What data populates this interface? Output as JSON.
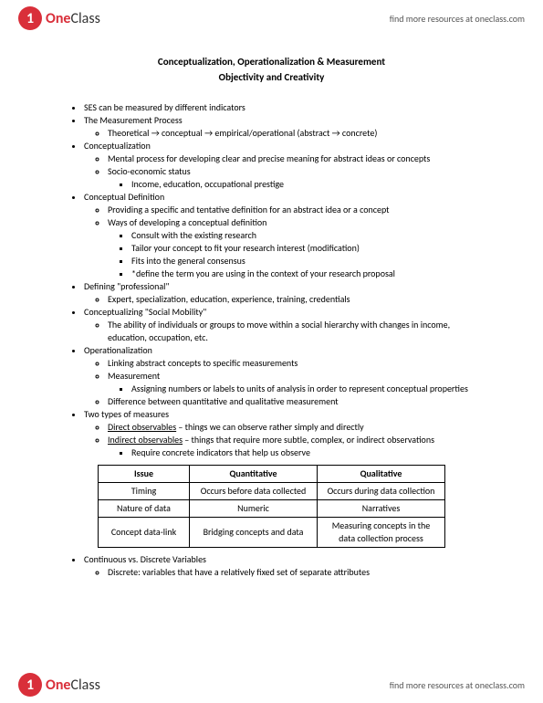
{
  "brand": {
    "icon_char": "1",
    "name_one": "One",
    "name_class": "Class",
    "icon_bg": "#d92f3a",
    "icon_fg": "#ffffff"
  },
  "header_link": "find more resources at oneclass.com",
  "footer_link": "find more resources at oneclass.com",
  "title": "Conceptualization, Operationalization & Measurement",
  "subtitle": "Objectivity and Creativity",
  "b": {
    "ses": "SES can be measured by different indicators",
    "mp": "The Measurement Process",
    "mp1": "Theoretical → conceptual → empirical/operational (abstract → concrete)",
    "con": "Conceptualization",
    "con1": "Mental process for developing clear and precise meaning for abstract ideas or concepts",
    "con2": "Socio-economic status",
    "con2a": "Income, education, occupational prestige",
    "cd": "Conceptual Definition",
    "cd1": "Providing a specific and tentative definition for an abstract idea or a concept",
    "cd2": "Ways of developing a conceptual definition",
    "cd2a": "Consult with the existing research",
    "cd2b": "Tailor your concept to fit your research interest (modification)",
    "cd2c": "Fits into the general consensus",
    "cd2d": "*define the term you are using in the context of your research proposal",
    "dp": "Defining \"professional\"",
    "dp1": "Expert, specialization, education, experience, training, credentials",
    "sm": "Conceptualizing \"Social Mobility\"",
    "sm1": "The ability of individuals or groups to move within a social hierarchy with changes in income, education, occupation, etc.",
    "op": "Operationalization",
    "op1": "Linking abstract concepts to specific measurements",
    "op2": "Measurement",
    "op2a": "Assigning numbers or labels to units of analysis in order to represent conceptual properties",
    "op3": "Difference between quantitative and qualitative measurement",
    "tm": "Two types of measures",
    "tm1a": "Direct observables",
    "tm1b": " – things we can observe rather simply and directly",
    "tm2a": "Indirect observables",
    "tm2b": " – things that require more subtle, complex, or indirect observations",
    "tm2c": "Require concrete indicators that help us observe",
    "cv": "Continuous vs. Discrete Variables",
    "cv1": "Discrete: variables that have a relatively fixed set of separate attributes"
  },
  "table": {
    "h1": "Issue",
    "h2": "Quantitative",
    "h3": "Qualitative",
    "r1c1": "Timing",
    "r1c2": "Occurs before data collected",
    "r1c3": "Occurs during data collection",
    "r2c1": "Nature of data",
    "r2c2": "Numeric",
    "r2c3": "Narratives",
    "r3c1": "Concept data-link",
    "r3c2": "Bridging concepts and data",
    "r3c3": "Measuring concepts in the data collection process"
  }
}
